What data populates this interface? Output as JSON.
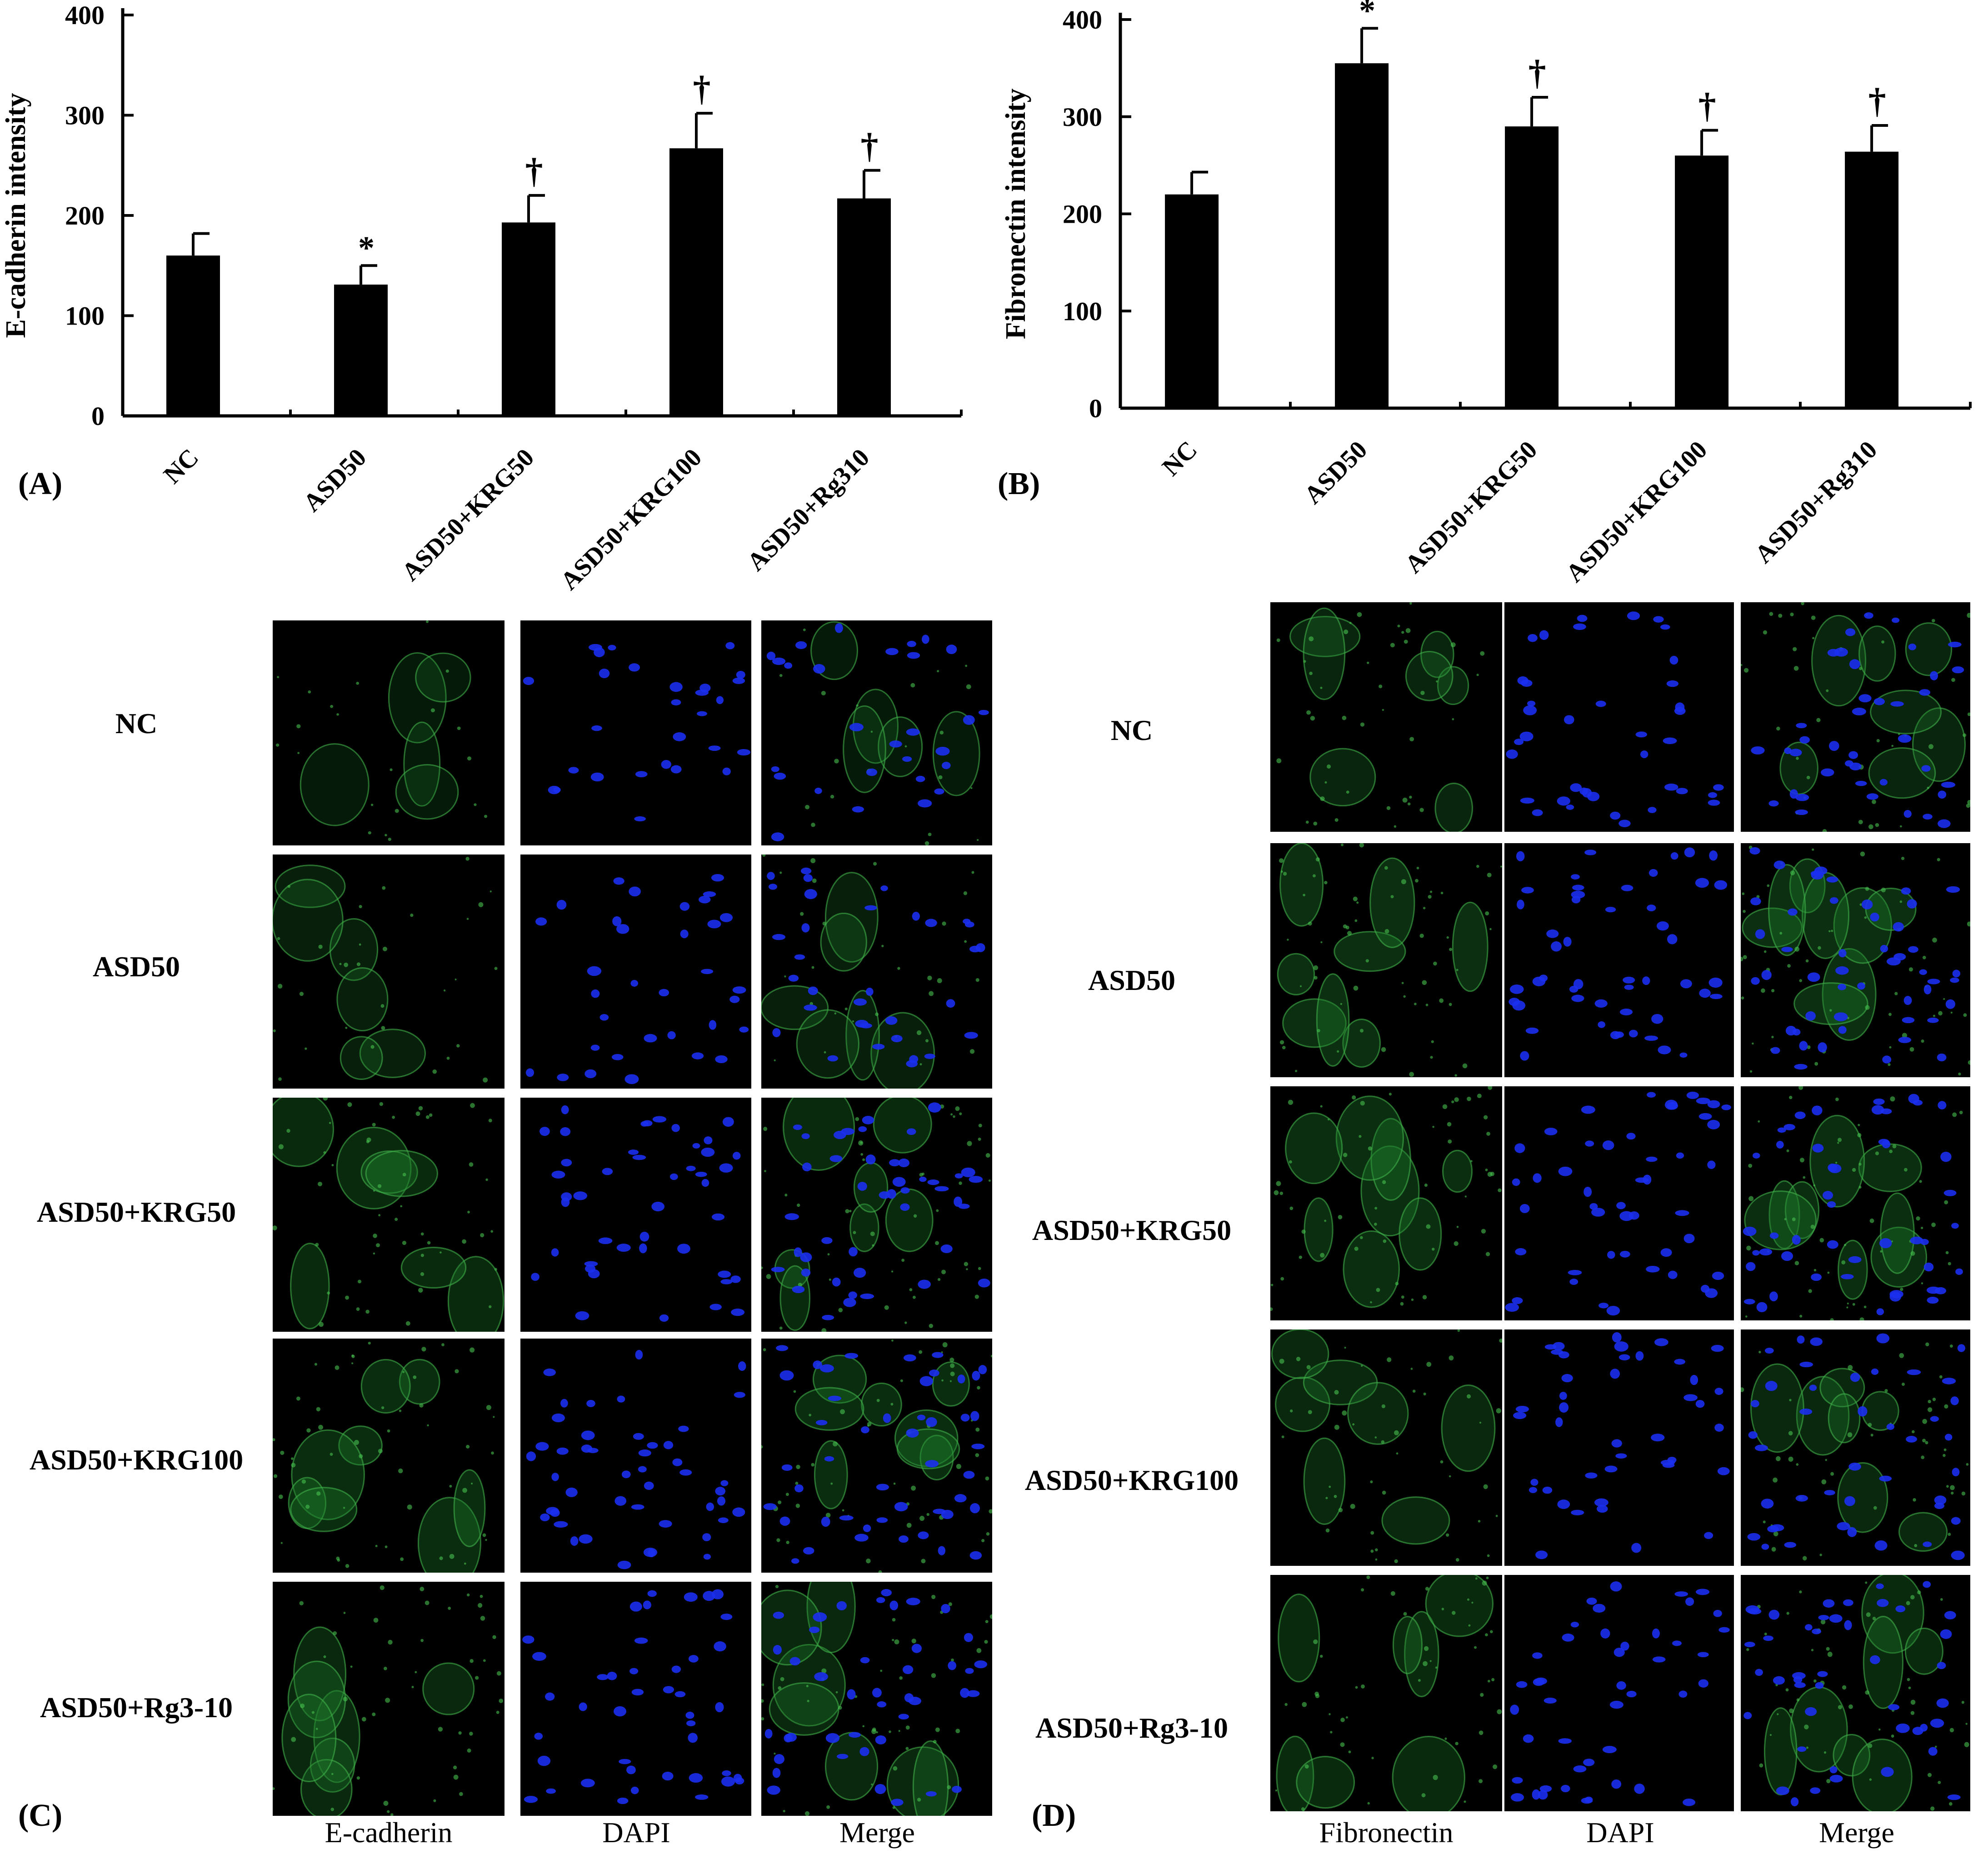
{
  "chart_data": [
    {
      "type": "bar",
      "panel": "(A)",
      "ylabel": "E-cadherin intensity",
      "categories": [
        "NC",
        "ASD50",
        "ASD50+KRG50",
        "ASD50+KRG100",
        "ASD50+Rg310"
      ],
      "values": [
        160,
        131,
        193,
        267,
        217
      ],
      "errors": [
        22,
        19,
        27,
        35,
        28
      ],
      "annotations": [
        "",
        "*",
        "†",
        "†",
        "†"
      ],
      "ylim": [
        0,
        400
      ],
      "yticks": [
        "0",
        "100",
        "200",
        "300",
        "400"
      ],
      "grid": false,
      "color": "#000000"
    },
    {
      "type": "bar",
      "panel": "(B)",
      "ylabel": "Fibronectin intensity",
      "categories": [
        "NC",
        "ASD50",
        "ASD50+KRG50",
        "ASD50+KRG100",
        "ASD50+Rg310"
      ],
      "values": [
        220,
        355,
        290,
        260,
        264
      ],
      "errors": [
        23,
        36,
        30,
        26,
        27
      ],
      "annotations": [
        "",
        "*",
        "†",
        "†",
        "†"
      ],
      "ylim": [
        0,
        400
      ],
      "yticks": [
        "0",
        "100",
        "200",
        "300",
        "400"
      ],
      "grid": false,
      "color": "#000000"
    }
  ],
  "panel_c": {
    "letter": "(C)",
    "rows": [
      "NC",
      "ASD50",
      "ASD50+KRG50",
      "ASD50+KRG100",
      "ASD50+Rg3-10"
    ],
    "columns": [
      "E-cadherin",
      "DAPI",
      "Merge"
    ]
  },
  "panel_d": {
    "letter": "(D)",
    "rows": [
      "NC",
      "ASD50",
      "ASD50+KRG50",
      "ASD50+KRG100",
      "ASD50+Rg3-10"
    ],
    "columns": [
      "Fibronectin",
      "DAPI",
      "Merge"
    ]
  }
}
